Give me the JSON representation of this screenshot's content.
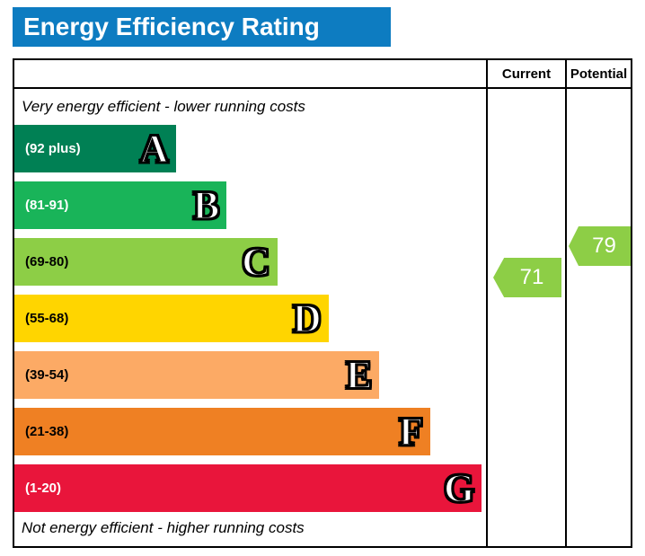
{
  "title": "Energy Efficiency Rating",
  "title_bar_color": "#0d7cc1",
  "columns": {
    "current": "Current",
    "potential": "Potential"
  },
  "captions": {
    "top": "Very energy efficient - lower running costs",
    "bottom": "Not energy efficient - higher running costs"
  },
  "bands": [
    {
      "letter": "A",
      "range": "(92 plus)",
      "color": "#008054",
      "text_color": "#ffffff",
      "width_pct": 34.2
    },
    {
      "letter": "B",
      "range": "(81-91)",
      "color": "#19b459",
      "text_color": "#ffffff",
      "width_pct": 45.0
    },
    {
      "letter": "C",
      "range": "(69-80)",
      "color": "#8dce46",
      "text_color": "#000000",
      "width_pct": 55.8
    },
    {
      "letter": "D",
      "range": "(55-68)",
      "color": "#ffd500",
      "text_color": "#000000",
      "width_pct": 66.6
    },
    {
      "letter": "E",
      "range": "(39-54)",
      "color": "#fcaa65",
      "text_color": "#000000",
      "width_pct": 77.4
    },
    {
      "letter": "F",
      "range": "(21-38)",
      "color": "#ef8023",
      "text_color": "#000000",
      "width_pct": 88.2
    },
    {
      "letter": "G",
      "range": "(1-20)",
      "color": "#e9153b",
      "text_color": "#ffffff",
      "width_pct": 99.1
    }
  ],
  "ratings": {
    "current": {
      "value": "71",
      "color": "#8dce46"
    },
    "potential": {
      "value": "79",
      "color": "#8dce46"
    }
  },
  "chart_data": {
    "type": "bar",
    "title": "Energy Efficiency Rating",
    "categories": [
      "A",
      "B",
      "C",
      "D",
      "E",
      "F",
      "G"
    ],
    "band_ranges": [
      "(92 plus)",
      "(81-91)",
      "(69-80)",
      "(55-68)",
      "(39-54)",
      "(21-38)",
      "(1-20)"
    ],
    "band_colors": [
      "#008054",
      "#19b459",
      "#8dce46",
      "#ffd500",
      "#fcaa65",
      "#ef8023",
      "#e9153b"
    ],
    "bar_lengths_pct": [
      34.2,
      45.0,
      55.8,
      66.6,
      77.4,
      88.2,
      99.1
    ],
    "columns": [
      "Current",
      "Potential"
    ],
    "current_rating": 71,
    "current_band": "C",
    "potential_rating": 79,
    "potential_band": "C",
    "annotations": [
      "Very energy efficient - lower running costs",
      "Not energy efficient - higher running costs"
    ],
    "legend_position": "none",
    "grid": false
  }
}
